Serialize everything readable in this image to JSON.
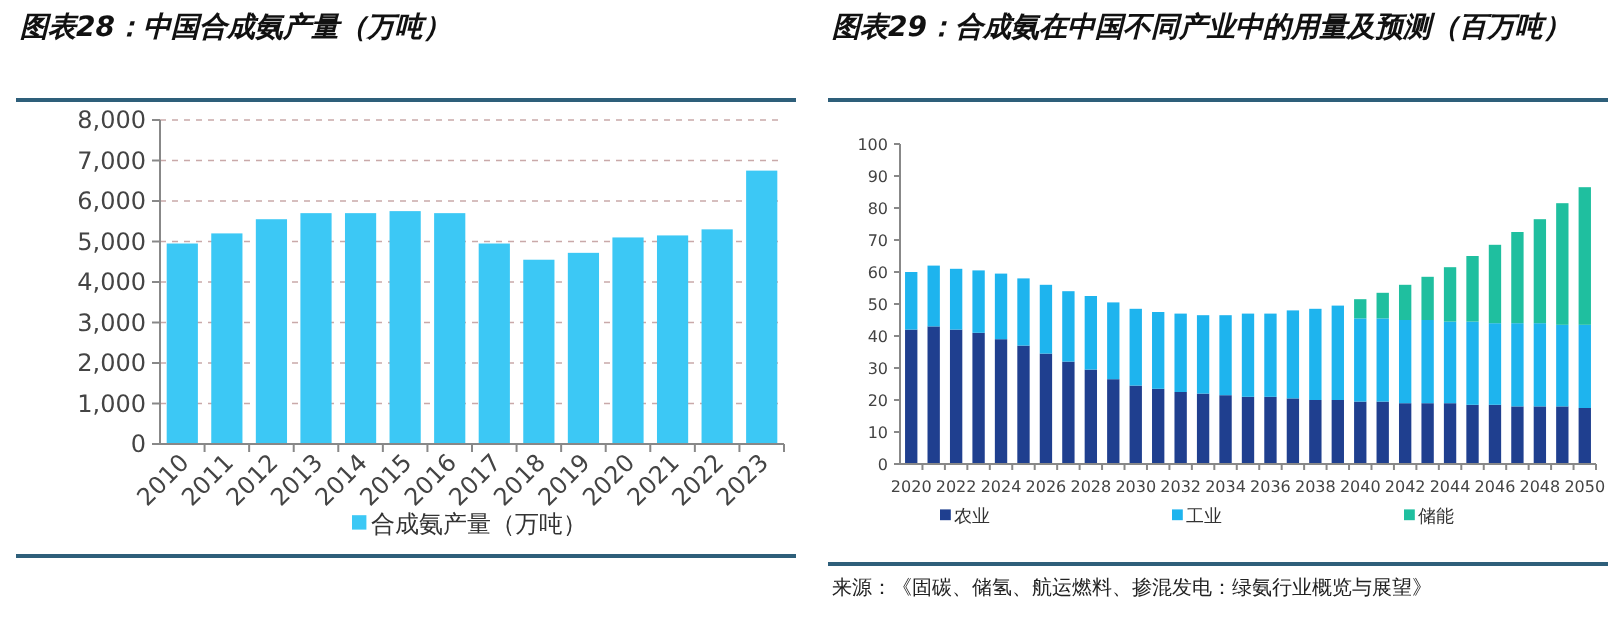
{
  "chart_data": [
    {
      "type": "bar",
      "title": "图表28：中国合成氨产量（万吨）",
      "categories": [
        "2010",
        "2011",
        "2012",
        "2013",
        "2014",
        "2015",
        "2016",
        "2017",
        "2018",
        "2019",
        "2020",
        "2021",
        "2022",
        "2023"
      ],
      "series": [
        {
          "name": "合成氨产量（万吨）",
          "color": "#3cc8f5",
          "values": [
            4950,
            5200,
            5550,
            5700,
            5700,
            5750,
            5700,
            4950,
            4550,
            4720,
            5100,
            5150,
            5300,
            6750
          ]
        }
      ],
      "ylim": [
        0,
        8000
      ],
      "yticks": [
        0,
        {
          "value": 1000,
          "label": "1,000"
        },
        {
          "value": 2000,
          "label": "2,000"
        },
        {
          "value": 3000,
          "label": "3,000"
        },
        {
          "value": 4000,
          "label": "4,000"
        },
        {
          "value": 5000,
          "label": "5,000"
        },
        {
          "value": 6000,
          "label": "6,000"
        },
        {
          "value": 7000,
          "label": "7,000"
        },
        {
          "value": 8000,
          "label": "8,000"
        }
      ],
      "grid": "y",
      "legend": "bottom"
    },
    {
      "type": "bar",
      "title": "图表29：合成氨在中国不同产业中的用量及预测（百万吨）",
      "categories": [
        "2020",
        null,
        "2022",
        null,
        "2024",
        null,
        "2026",
        null,
        "2028",
        null,
        "2030",
        null,
        "2032",
        null,
        "2034",
        null,
        "2036",
        null,
        "2038",
        null,
        "2040",
        null,
        "2042",
        null,
        "2044",
        null,
        "2046",
        null,
        "2048",
        null,
        "2050"
      ],
      "stacked": true,
      "series": [
        {
          "name": "农业",
          "color": "#1f3f8f",
          "values": [
            42,
            43,
            42,
            41,
            39,
            37,
            34.5,
            32,
            29.5,
            26.5,
            24.5,
            23.5,
            22.5,
            22,
            21.5,
            21,
            21,
            20.5,
            20,
            20,
            19.5,
            19.5,
            19,
            19,
            19,
            18.5,
            18.5,
            18,
            18,
            18,
            17.5
          ]
        },
        {
          "name": "工业",
          "color": "#1eb4ee",
          "values": [
            18,
            19,
            19,
            19.5,
            20.5,
            21,
            21.5,
            22,
            23,
            24,
            24,
            24,
            24.5,
            24.5,
            25,
            26,
            26,
            27.5,
            28.5,
            29.5,
            26,
            26,
            26,
            26,
            25.5,
            26,
            25.5,
            26,
            26,
            25.5,
            26
          ]
        },
        {
          "name": "储能",
          "color": "#1fbf9f",
          "values": [
            null,
            null,
            null,
            null,
            null,
            null,
            null,
            null,
            null,
            null,
            null,
            null,
            null,
            null,
            null,
            null,
            null,
            null,
            null,
            null,
            6,
            8,
            11,
            13.5,
            17,
            20.5,
            24.5,
            28.5,
            32.5,
            38,
            43
          ]
        }
      ],
      "ylim": [
        0,
        100
      ],
      "yticks": [
        0,
        10,
        20,
        30,
        40,
        50,
        60,
        70,
        80,
        90,
        100
      ],
      "legend": "bottom",
      "annotations": [
        "来源：《固碳、储氢、航运燃料、掺混发电：绿氨行业概览与展望》"
      ]
    }
  ]
}
